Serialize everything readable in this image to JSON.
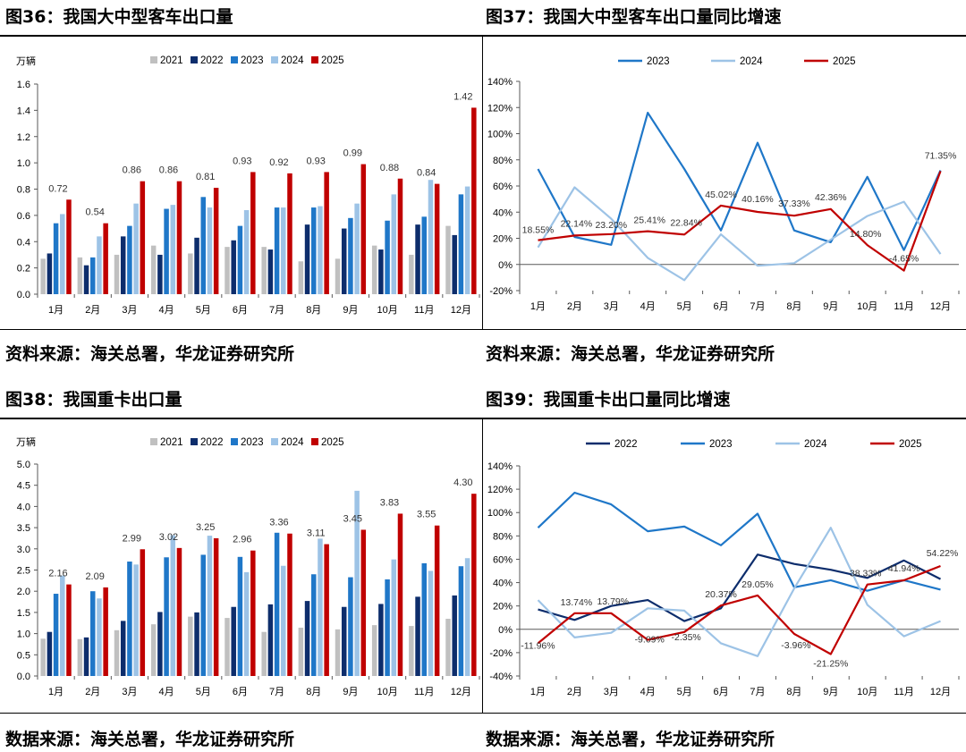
{
  "colors": {
    "y2021": "#c0c0c0",
    "y2022": "#0d2d6c",
    "y2023": "#1f77c8",
    "y2024": "#9dc3e6",
    "y2025": "#c00000",
    "text": "#333333",
    "axis": "#595959"
  },
  "chart_data": [
    {
      "id": "fig36",
      "type": "bar",
      "title": "图36：我国大中型客车出口量",
      "source": "资料来源：海关总署，华龙证券研究所",
      "unit": "万辆",
      "categories": [
        "1月",
        "2月",
        "3月",
        "4月",
        "5月",
        "6月",
        "7月",
        "8月",
        "9月",
        "10月",
        "11月",
        "12月"
      ],
      "ylim": [
        0,
        1.6
      ],
      "yticks": [
        "0.0",
        "0.2",
        "0.4",
        "0.6",
        "0.8",
        "1.0",
        "1.2",
        "1.4",
        "1.6"
      ],
      "legend": [
        "2021",
        "2022",
        "2023",
        "2024",
        "2025"
      ],
      "series": [
        {
          "name": "2021",
          "values": [
            0.27,
            0.28,
            0.3,
            0.37,
            0.31,
            0.36,
            0.36,
            0.25,
            0.27,
            0.37,
            0.3,
            0.52
          ]
        },
        {
          "name": "2022",
          "values": [
            0.31,
            0.22,
            0.44,
            0.3,
            0.43,
            0.41,
            0.34,
            0.53,
            0.5,
            0.34,
            0.53,
            0.45
          ]
        },
        {
          "name": "2023",
          "values": [
            0.54,
            0.28,
            0.52,
            0.65,
            0.74,
            0.52,
            0.66,
            0.66,
            0.58,
            0.56,
            0.59,
            0.76
          ]
        },
        {
          "name": "2024",
          "values": [
            0.61,
            0.44,
            0.69,
            0.68,
            0.66,
            0.64,
            0.66,
            0.67,
            0.69,
            0.76,
            0.87,
            0.82
          ]
        },
        {
          "name": "2025",
          "values": [
            0.72,
            0.54,
            0.86,
            0.86,
            0.81,
            0.93,
            0.92,
            0.93,
            0.99,
            0.88,
            0.84,
            1.42
          ]
        }
      ],
      "labels": [
        "0.72",
        "0.54",
        "0.86",
        "0.86",
        "0.81",
        "0.93",
        "0.92",
        "0.93",
        "0.99",
        "0.88",
        "0.84",
        "1.42"
      ]
    },
    {
      "id": "fig37",
      "type": "line",
      "title": "图37：我国大中型客车出口量同比增速",
      "source": "资料来源：海关总署，华龙证券研究所",
      "categories": [
        "1月",
        "2月",
        "3月",
        "4月",
        "5月",
        "6月",
        "7月",
        "8月",
        "9月",
        "10月",
        "11月",
        "12月"
      ],
      "ylim": [
        -20,
        140
      ],
      "yticks": [
        "-20%",
        "0%",
        "20%",
        "40%",
        "60%",
        "80%",
        "100%",
        "120%",
        "140%"
      ],
      "legend": [
        "2023",
        "2024",
        "2025"
      ],
      "series": [
        {
          "name": "2023",
          "values": [
            73,
            21,
            15,
            116,
            73,
            26,
            93,
            26,
            17,
            67,
            11,
            72
          ]
        },
        {
          "name": "2024",
          "values": [
            13,
            59,
            35,
            5,
            -12,
            23,
            -1,
            1,
            19,
            37,
            48,
            8
          ]
        },
        {
          "name": "2025",
          "values": [
            18.55,
            22.14,
            23.2,
            25.41,
            22.84,
            45.02,
            40.16,
            37.33,
            42.36,
            14.8,
            -4.65,
            71.35
          ]
        }
      ],
      "labels": [
        "18.55%",
        "22.14%",
        "23.20%",
        "25.41%",
        "22.84%",
        "45.02%",
        "40.16%",
        "37.33%",
        "42.36%",
        "14.80%",
        "-4.65%",
        "71.35%"
      ]
    },
    {
      "id": "fig38",
      "type": "bar",
      "title": "图38：我国重卡出口量",
      "source": "数据来源：海关总署，华龙证券研究所",
      "unit": "万辆",
      "categories": [
        "1月",
        "2月",
        "3月",
        "4月",
        "5月",
        "6月",
        "7月",
        "8月",
        "9月",
        "10月",
        "11月",
        "12月"
      ],
      "ylim": [
        0,
        5.0
      ],
      "yticks": [
        "0.0",
        "0.5",
        "1.0",
        "1.5",
        "2.0",
        "2.5",
        "3.0",
        "3.5",
        "4.0",
        "4.5",
        "5.0"
      ],
      "legend": [
        "2021",
        "2022",
        "2023",
        "2024",
        "2025"
      ],
      "series": [
        {
          "name": "2021",
          "values": [
            0.88,
            0.87,
            1.08,
            1.22,
            1.4,
            1.37,
            1.04,
            1.14,
            1.1,
            1.2,
            1.18,
            1.35
          ]
        },
        {
          "name": "2022",
          "values": [
            1.04,
            0.91,
            1.3,
            1.51,
            1.5,
            1.63,
            1.69,
            1.77,
            1.63,
            1.7,
            1.87,
            1.9
          ]
        },
        {
          "name": "2023",
          "values": [
            1.94,
            2.0,
            2.7,
            2.8,
            2.86,
            2.81,
            3.38,
            2.4,
            2.33,
            2.28,
            2.66,
            2.59
          ]
        },
        {
          "name": "2024",
          "values": [
            2.37,
            1.83,
            2.63,
            3.32,
            3.31,
            2.45,
            2.6,
            3.24,
            4.37,
            2.75,
            2.48,
            2.78
          ]
        },
        {
          "name": "2025",
          "values": [
            2.16,
            2.09,
            2.99,
            3.02,
            3.25,
            2.96,
            3.36,
            3.11,
            3.45,
            3.83,
            3.55,
            4.3
          ]
        }
      ],
      "labels": [
        "2.16",
        "2.09",
        "2.99",
        "3.02",
        "3.25",
        "2.96",
        "3.36",
        "3.11",
        "3.45",
        "3.83",
        "3.55",
        "4.30"
      ]
    },
    {
      "id": "fig39",
      "type": "line",
      "title": "图39：我国重卡出口量同比增速",
      "source": "数据来源：海关总署，华龙证券研究所",
      "categories": [
        "1月",
        "2月",
        "3月",
        "4月",
        "5月",
        "6月",
        "7月",
        "8月",
        "9月",
        "10月",
        "11月",
        "12月"
      ],
      "ylim": [
        -40,
        140
      ],
      "yticks": [
        "-40%",
        "-20%",
        "0%",
        "20%",
        "40%",
        "60%",
        "80%",
        "100%",
        "120%",
        "140%"
      ],
      "legend": [
        "2022",
        "2023",
        "2024",
        "2025"
      ],
      "series": [
        {
          "name": "2022",
          "values": [
            17,
            8,
            20,
            25,
            7,
            18,
            64,
            56,
            51,
            44,
            59,
            43
          ]
        },
        {
          "name": "2023",
          "values": [
            87,
            117,
            107,
            84,
            88,
            72,
            99,
            36,
            42,
            33,
            42,
            34
          ]
        },
        {
          "name": "2024",
          "values": [
            25,
            -7,
            -3,
            18,
            16,
            -12,
            -23,
            35,
            87,
            21,
            -6,
            7
          ]
        },
        {
          "name": "2025",
          "values": [
            -11.96,
            13.74,
            13.79,
            -9.09,
            -2.35,
            20.37,
            29.05,
            -3.96,
            -21.25,
            38.33,
            41.94,
            54.22
          ]
        }
      ],
      "labels": [
        "-11.96%",
        "13.74%",
        "13.79%",
        "-9.09%",
        "-2.35%",
        "20.37%",
        "29.05%",
        "-3.96%",
        "-21.25%",
        "38.33%",
        "41.94%",
        "54.22%"
      ]
    }
  ]
}
